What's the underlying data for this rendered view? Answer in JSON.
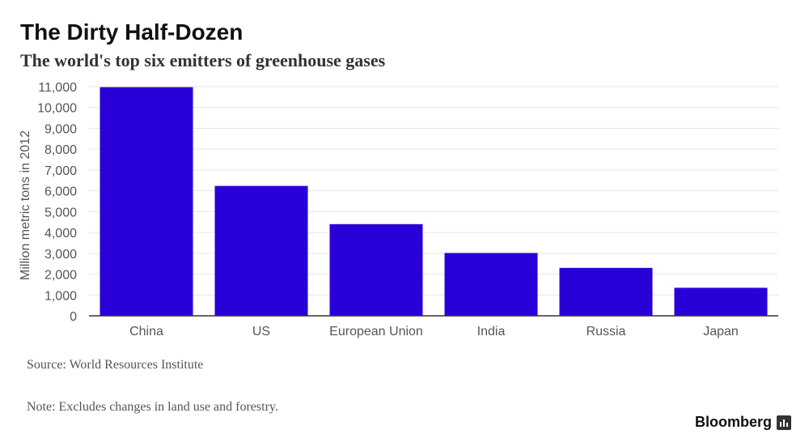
{
  "header": {
    "title": "The Dirty Half-Dozen",
    "subtitle": "The world's top six emitters of greenhouse gases"
  },
  "footer": {
    "source": "Source: World Resources Institute",
    "note": "Note: Excludes changes in land use and forestry.",
    "brand": "Bloomberg"
  },
  "colors": {
    "bar": "#2a00d8",
    "grid": "#e6e6e6",
    "axis": "#333333",
    "tick_text": "#555555"
  },
  "chart_data": {
    "type": "bar",
    "title": "The Dirty Half-Dozen",
    "subtitle": "The world's top six emitters of greenhouse gases",
    "categories": [
      "China",
      "US",
      "European Union",
      "India",
      "Russia",
      "Japan"
    ],
    "values": [
      10975,
      6235,
      4400,
      3015,
      2300,
      1345
    ],
    "xlabel": "",
    "ylabel": "Million metric tons in 2012",
    "ylim": [
      0,
      11000
    ],
    "yticks": [
      0,
      1000,
      2000,
      3000,
      4000,
      5000,
      6000,
      7000,
      8000,
      9000,
      10000,
      11000
    ],
    "ytick_labels": [
      "0",
      "1,000",
      "2,000",
      "3,000",
      "4,000",
      "5,000",
      "6,000",
      "7,000",
      "8,000",
      "9,000",
      "10,000",
      "11,000"
    ],
    "grid": true,
    "legend": "none"
  }
}
